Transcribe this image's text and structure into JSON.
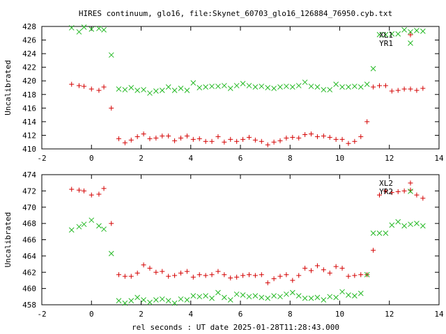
{
  "title": "HIRES continuum, glo16, file:Skynet_60703_glo16_126884_76950.cyb.txt",
  "xlabel": "rel seconds : UT date 2025-01-28T11:28:43.000",
  "colors": {
    "red": "#d40000",
    "green": "#22b822",
    "axis": "#000000"
  },
  "chart_data": [
    {
      "type": "scatter",
      "ylabel": "Uncalibrated",
      "xlim": [
        -2,
        14
      ],
      "ylim": [
        410,
        428
      ],
      "xticks": [
        -2,
        0,
        2,
        4,
        6,
        8,
        10,
        12,
        14
      ],
      "yticks": [
        410,
        412,
        414,
        416,
        418,
        420,
        422,
        424,
        426,
        428
      ],
      "legend_position": "top-right",
      "series": [
        {
          "name": "XL1",
          "marker": "plus",
          "color": "#d40000",
          "x": [
            -0.8,
            -0.5,
            -0.3,
            0.0,
            0.3,
            0.5,
            0.8,
            1.1,
            1.35,
            1.6,
            1.85,
            2.1,
            2.35,
            2.6,
            2.85,
            3.1,
            3.35,
            3.6,
            3.85,
            4.1,
            4.35,
            4.6,
            4.85,
            5.1,
            5.35,
            5.6,
            5.85,
            6.1,
            6.35,
            6.6,
            6.85,
            7.1,
            7.35,
            7.6,
            7.85,
            8.1,
            8.35,
            8.6,
            8.85,
            9.1,
            9.35,
            9.6,
            9.85,
            10.1,
            10.35,
            10.6,
            10.85,
            11.1,
            11.35,
            11.6,
            11.85,
            12.1,
            12.35,
            12.6,
            12.85,
            13.1,
            13.35
          ],
          "y": [
            419.5,
            419.3,
            419.2,
            418.8,
            418.6,
            419.1,
            416.0,
            411.5,
            410.9,
            411.3,
            411.8,
            412.2,
            411.5,
            411.6,
            411.9,
            411.9,
            411.2,
            411.6,
            411.9,
            411.4,
            411.5,
            411.1,
            411.1,
            411.8,
            411.0,
            411.4,
            411.1,
            411.4,
            411.7,
            411.3,
            411.1,
            410.6,
            411.0,
            411.2,
            411.6,
            411.7,
            411.6,
            412.1,
            412.2,
            411.8,
            411.9,
            411.7,
            411.4,
            411.4,
            410.8,
            411.1,
            411.8,
            414.0,
            419.1,
            419.3,
            419.3,
            418.5,
            418.6,
            418.8,
            418.8,
            418.6,
            418.9
          ]
        },
        {
          "name": "YR1",
          "marker": "cross",
          "color": "#22b822",
          "x": [
            -0.8,
            -0.5,
            -0.3,
            0.0,
            0.3,
            0.5,
            0.8,
            1.1,
            1.35,
            1.6,
            1.85,
            2.1,
            2.35,
            2.6,
            2.85,
            3.1,
            3.35,
            3.6,
            3.85,
            4.1,
            4.35,
            4.6,
            4.85,
            5.1,
            5.35,
            5.6,
            5.85,
            6.1,
            6.35,
            6.6,
            6.85,
            7.1,
            7.35,
            7.6,
            7.85,
            8.1,
            8.35,
            8.6,
            8.85,
            9.1,
            9.35,
            9.6,
            9.85,
            10.1,
            10.35,
            10.6,
            10.85,
            11.1,
            11.35,
            11.6,
            11.85,
            12.1,
            12.35,
            12.6,
            12.85,
            13.1,
            13.35
          ],
          "y": [
            427.8,
            427.2,
            427.9,
            427.6,
            427.7,
            427.5,
            423.8,
            418.8,
            418.7,
            419.0,
            418.6,
            418.7,
            418.2,
            418.5,
            418.6,
            419.1,
            418.6,
            418.9,
            418.6,
            419.7,
            419.0,
            419.1,
            419.2,
            419.2,
            419.3,
            418.9,
            419.3,
            419.6,
            419.3,
            419.1,
            419.2,
            419.0,
            418.9,
            419.1,
            419.2,
            419.1,
            419.3,
            419.8,
            419.2,
            419.1,
            418.7,
            418.7,
            419.5,
            419.1,
            419.1,
            419.2,
            419.1,
            419.5,
            421.8,
            426.8,
            426.8,
            426.9,
            426.9,
            427.5,
            427.2,
            427.4,
            427.3
          ]
        }
      ]
    },
    {
      "type": "scatter",
      "ylabel": "Uncalibrated",
      "xlim": [
        -2,
        14
      ],
      "ylim": [
        458,
        474
      ],
      "xticks": [
        -2,
        0,
        2,
        4,
        6,
        8,
        10,
        12,
        14
      ],
      "yticks": [
        458,
        460,
        462,
        464,
        466,
        468,
        470,
        472,
        474
      ],
      "legend_position": "top-right",
      "series": [
        {
          "name": "XL2",
          "marker": "plus",
          "color": "#d40000",
          "x": [
            -0.8,
            -0.5,
            -0.3,
            0.0,
            0.3,
            0.5,
            0.8,
            1.1,
            1.35,
            1.6,
            1.85,
            2.1,
            2.35,
            2.6,
            2.85,
            3.1,
            3.35,
            3.6,
            3.85,
            4.1,
            4.35,
            4.6,
            4.85,
            5.1,
            5.35,
            5.6,
            5.85,
            6.1,
            6.35,
            6.6,
            6.85,
            7.1,
            7.35,
            7.6,
            7.85,
            8.1,
            8.35,
            8.6,
            8.85,
            9.1,
            9.35,
            9.6,
            9.85,
            10.1,
            10.35,
            10.6,
            10.85,
            11.1,
            11.35,
            11.6,
            11.85,
            12.1,
            12.35,
            12.6,
            12.85,
            13.1,
            13.35
          ],
          "y": [
            472.2,
            472.1,
            472.0,
            471.5,
            471.6,
            472.3,
            468.0,
            461.7,
            461.5,
            461.5,
            461.9,
            462.9,
            462.5,
            462.0,
            462.1,
            461.5,
            461.6,
            461.9,
            462.1,
            461.4,
            461.7,
            461.6,
            461.7,
            462.1,
            461.7,
            461.3,
            461.4,
            461.6,
            461.7,
            461.6,
            461.7,
            460.7,
            461.2,
            461.5,
            461.7,
            461.0,
            461.6,
            462.5,
            462.2,
            462.8,
            462.3,
            461.9,
            462.7,
            462.5,
            461.5,
            461.6,
            461.7,
            461.7,
            464.7,
            471.5,
            472.0,
            471.8,
            471.9,
            472.0,
            472.1,
            471.5,
            471.1
          ]
        },
        {
          "name": "YR2",
          "marker": "cross",
          "color": "#22b822",
          "x": [
            -0.8,
            -0.5,
            -0.3,
            0.0,
            0.3,
            0.5,
            0.8,
            1.1,
            1.35,
            1.6,
            1.85,
            2.1,
            2.35,
            2.6,
            2.85,
            3.1,
            3.35,
            3.6,
            3.85,
            4.1,
            4.35,
            4.6,
            4.85,
            5.1,
            5.35,
            5.6,
            5.85,
            6.1,
            6.35,
            6.6,
            6.85,
            7.1,
            7.35,
            7.6,
            7.85,
            8.1,
            8.35,
            8.6,
            8.85,
            9.1,
            9.35,
            9.6,
            9.85,
            10.1,
            10.35,
            10.6,
            10.85,
            11.1,
            11.35,
            11.6,
            11.85,
            12.1,
            12.35,
            12.6,
            12.85,
            13.1,
            13.35
          ],
          "y": [
            467.2,
            467.6,
            467.9,
            468.4,
            467.7,
            467.3,
            464.3,
            458.5,
            458.2,
            458.5,
            458.9,
            458.6,
            458.3,
            458.6,
            458.7,
            458.5,
            458.2,
            458.7,
            458.6,
            459.1,
            459.0,
            459.1,
            458.8,
            459.5,
            458.9,
            458.6,
            459.3,
            459.2,
            459.0,
            459.1,
            458.9,
            458.8,
            459.1,
            459.0,
            459.3,
            459.5,
            459.1,
            458.8,
            458.8,
            458.9,
            458.6,
            459.0,
            458.9,
            459.6,
            459.2,
            459.1,
            459.4,
            461.7,
            466.8,
            466.8,
            466.8,
            467.8,
            468.2,
            467.7,
            467.9,
            468.0,
            467.7
          ]
        }
      ]
    }
  ]
}
